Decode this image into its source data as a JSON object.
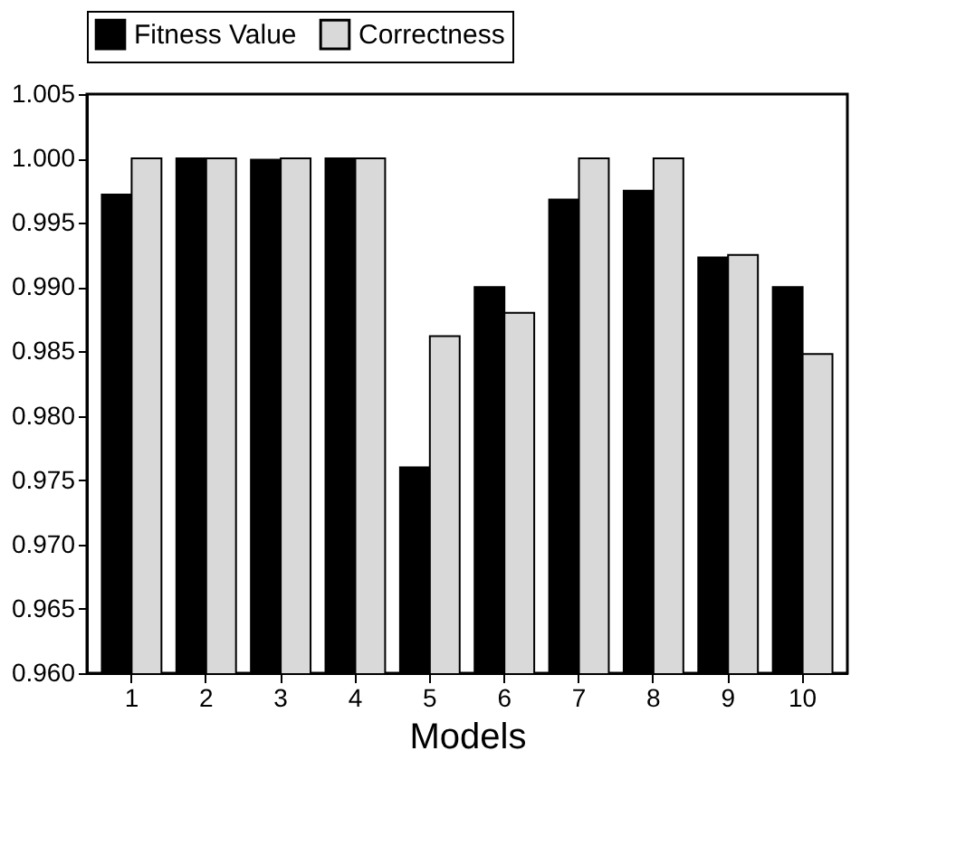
{
  "chart_data": {
    "type": "bar",
    "xlabel": "Models",
    "categories": [
      "1",
      "2",
      "3",
      "4",
      "5",
      "6",
      "7",
      "8",
      "9",
      "10"
    ],
    "series": [
      {
        "name": "Fitness Value",
        "color": "#000000",
        "values": [
          0.9972,
          1.0,
          0.9999,
          1.0,
          0.976,
          0.99,
          0.9968,
          0.9975,
          0.9923,
          0.99
        ]
      },
      {
        "name": "Correctness",
        "color": "#d9d9d9",
        "values": [
          1.0,
          1.0,
          1.0,
          1.0,
          0.9862,
          0.988,
          1.0,
          1.0,
          0.9925,
          0.9848
        ]
      }
    ],
    "ylim": [
      0.96,
      1.005
    ],
    "yticks": [
      {
        "value": 0.96,
        "label": "0.960"
      },
      {
        "value": 0.965,
        "label": "0.965"
      },
      {
        "value": 0.97,
        "label": "0.970"
      },
      {
        "value": 0.975,
        "label": "0.975"
      },
      {
        "value": 0.98,
        "label": "0.980"
      },
      {
        "value": 0.985,
        "label": "0.985"
      },
      {
        "value": 0.99,
        "label": "0.990"
      },
      {
        "value": 0.995,
        "label": "0.995"
      },
      {
        "value": 1.0,
        "label": "1.000"
      },
      {
        "value": 1.005,
        "label": "1.005"
      }
    ],
    "grid": false,
    "legend": "top"
  }
}
